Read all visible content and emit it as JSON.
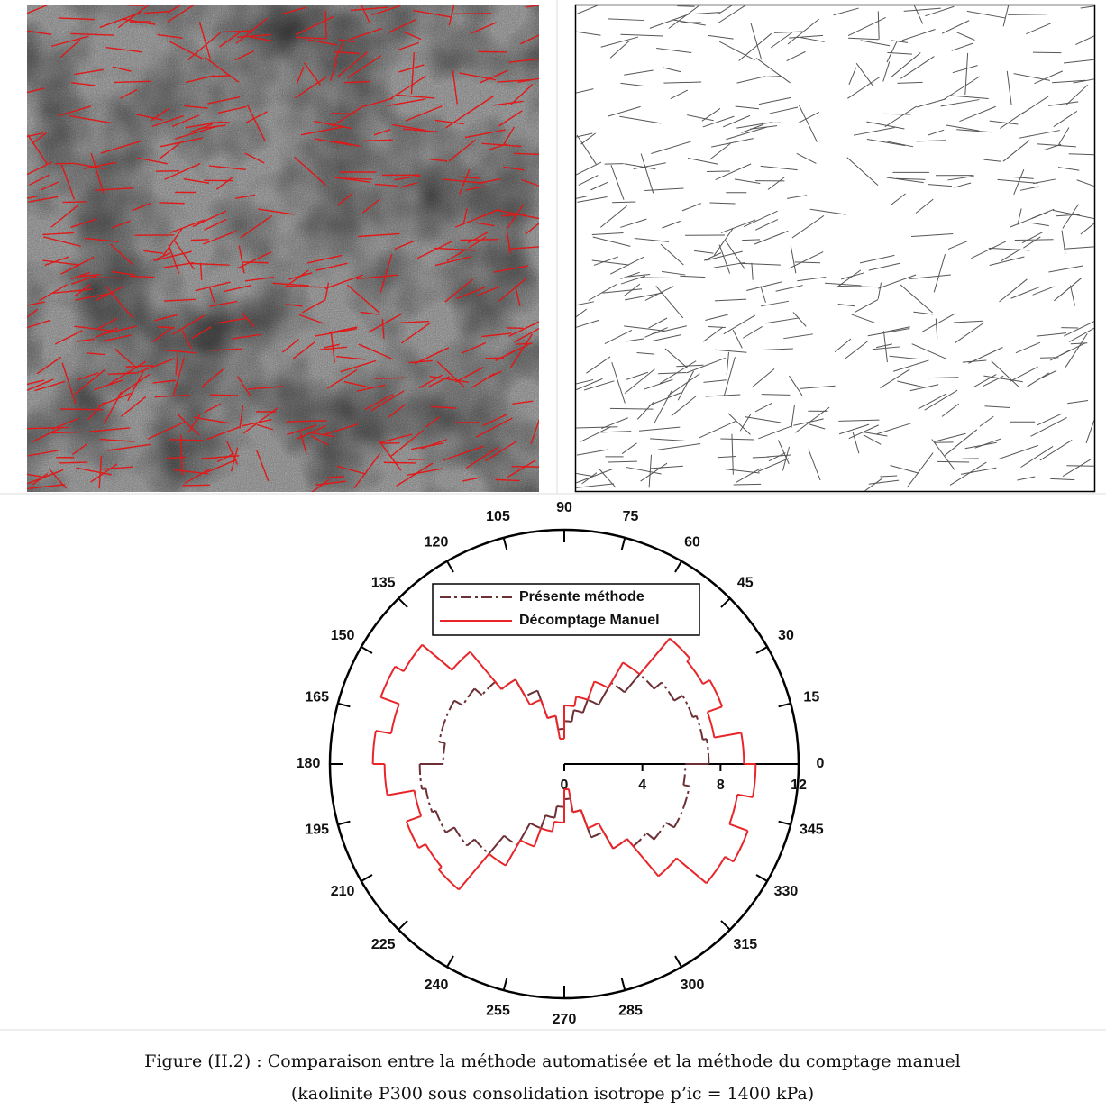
{
  "chart_data": {
    "type": "polar-rose",
    "angle_ticks": [
      0,
      15,
      30,
      45,
      60,
      75,
      90,
      105,
      120,
      135,
      150,
      165,
      180,
      195,
      210,
      225,
      240,
      255,
      270,
      285,
      300,
      315,
      330,
      345
    ],
    "rlim": [
      0,
      12
    ],
    "rticks": [
      0,
      4,
      8,
      12
    ],
    "bin_angles": [
      0,
      10,
      20,
      30,
      40,
      50,
      60,
      70,
      80,
      90,
      100,
      110,
      120,
      130,
      140,
      150,
      160,
      170,
      180,
      190,
      200,
      210,
      220,
      230,
      240,
      250,
      260,
      270,
      280,
      290,
      300,
      310,
      320,
      330,
      340,
      350
    ],
    "legend": "upper-center",
    "series": [
      {
        "name": "Présente méthode",
        "color": "#6b2f35",
        "dash": "dashdot",
        "values": [
          7.4,
          7.2,
          7.0,
          6.5,
          6.0,
          4.8,
          3.5,
          2.8,
          2.2,
          1.8,
          2.5,
          4.0,
          5.0,
          5.5,
          6.0,
          6.5,
          6.5,
          6.2,
          7.4,
          7.2,
          7.0,
          6.5,
          6.0,
          4.8,
          3.5,
          2.8,
          2.2,
          1.8,
          2.5,
          4.0,
          5.0,
          5.5,
          6.0,
          6.5,
          6.5,
          6.2
        ]
      },
      {
        "name": "Décomptage Manuel",
        "color": "#e8262a",
        "dash": "solid",
        "values": [
          9.2,
          7.8,
          8.6,
          8.2,
          8.4,
          6.0,
          4.5,
          3.5,
          3.0,
          1.3,
          2.5,
          3.5,
          5.0,
          7.5,
          9.5,
          10.0,
          9.0,
          9.8,
          9.2,
          7.8,
          8.6,
          8.2,
          8.4,
          6.0,
          4.5,
          3.5,
          3.0,
          1.3,
          2.5,
          3.5,
          5.0,
          7.5,
          9.5,
          10.0,
          9.0,
          9.8
        ]
      }
    ]
  },
  "caption": {
    "line1": "Figure (II.2) : Comparaison entre la méthode automatisée et la méthode du comptage manuel",
    "line2": "(kaolinite P300 sous consolidation isotrope p’ic = 1400 kPa)"
  }
}
